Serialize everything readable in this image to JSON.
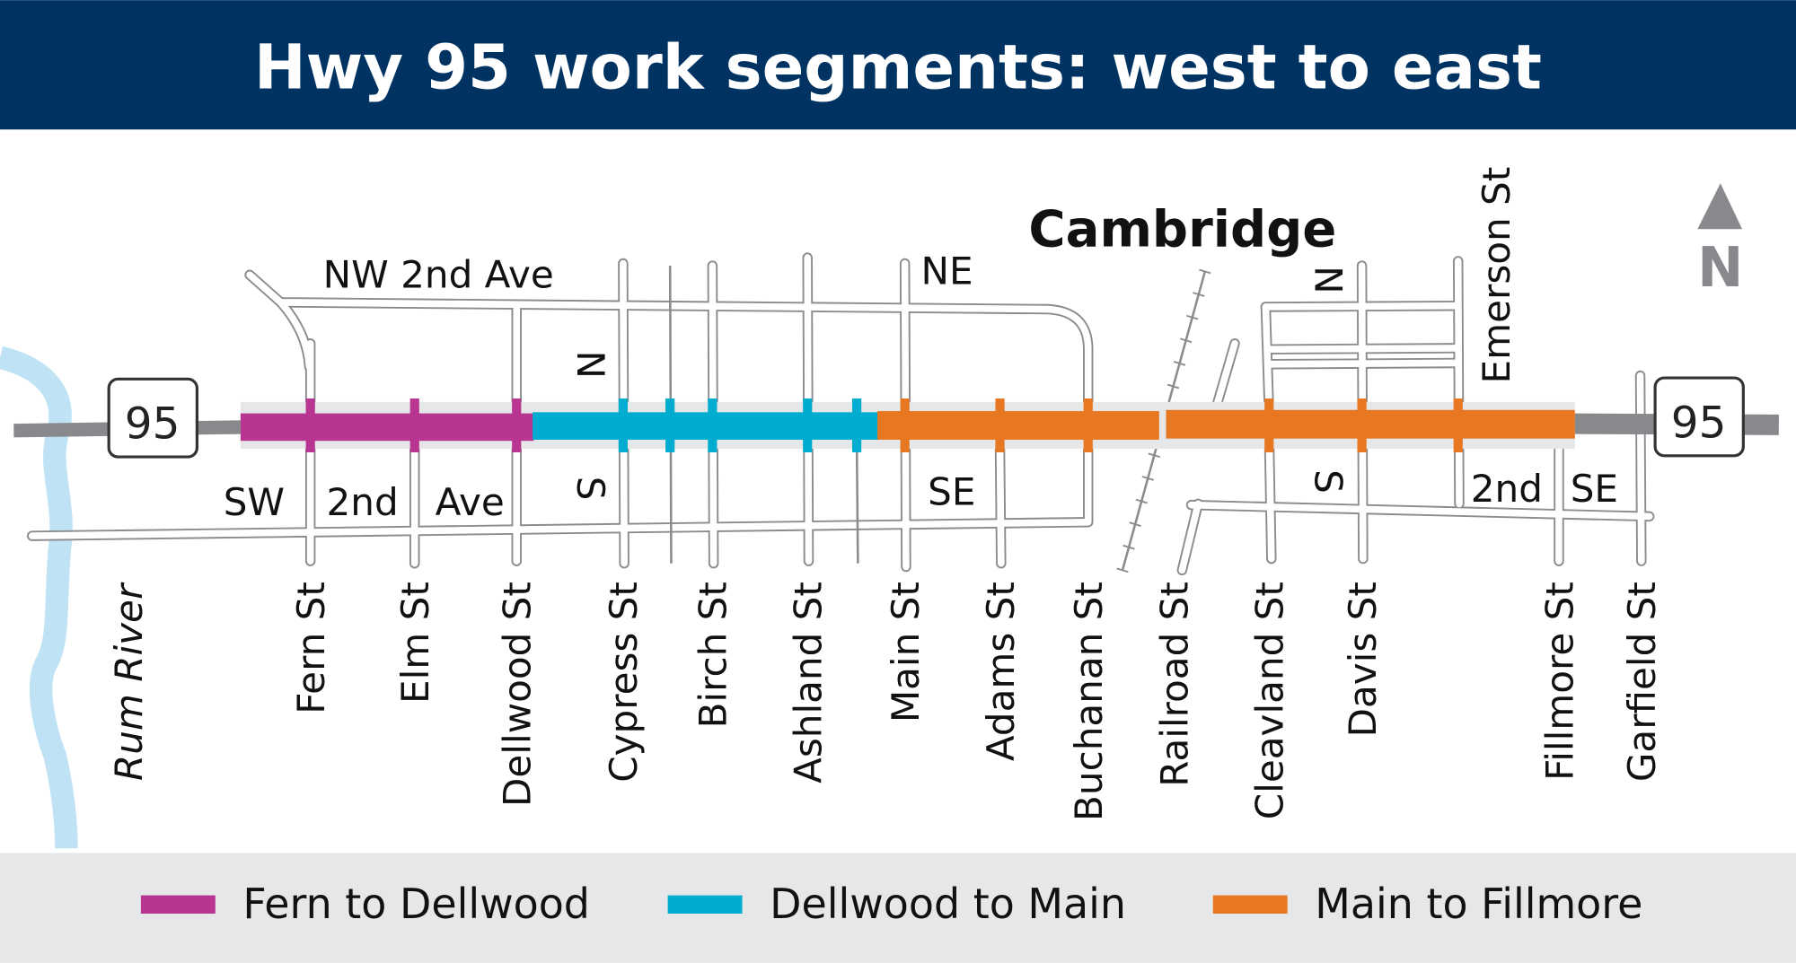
{
  "header": {
    "title": "Hwy 95 work segments: west to east",
    "bg_color": "#003362"
  },
  "highway": {
    "route_number": "95",
    "color": "#87898c"
  },
  "city_label": "Cambridge",
  "river_label": "Rum River",
  "north_arrow": {
    "label": "N"
  },
  "road_labels": {
    "nw_2nd_ave": "NW 2nd Ave",
    "sw": "SW",
    "sw_2nd": "2nd",
    "sw_ave": "Ave",
    "n_west": "N",
    "s_west": "S",
    "ne": "NE",
    "se_west": "SE",
    "n_east": "N",
    "s_east": "S",
    "emerson": "Emerson St",
    "se_2nd": "2nd",
    "se_east": "SE"
  },
  "streets": [
    {
      "name": "Fern St",
      "color": "#b83592"
    },
    {
      "name": "Elm St",
      "color": "#b83592"
    },
    {
      "name": "Dellwood St",
      "color": "#b83592"
    },
    {
      "name": "Cypress St",
      "color": "#00acd0"
    },
    {
      "name": "Birch St",
      "color": "#00acd0"
    },
    {
      "name": "Ashland St",
      "color": "#00acd0"
    },
    {
      "name": "Main St",
      "color": "#e87722"
    },
    {
      "name": "Adams St",
      "color": "#e87722"
    },
    {
      "name": "Buchanan St",
      "color": "#e87722"
    },
    {
      "name": "Railroad St",
      "color": "#e87722"
    },
    {
      "name": "Cleavland St",
      "color": "#e87722"
    },
    {
      "name": "Davis St",
      "color": "#e87722"
    },
    {
      "name": "Fillmore St",
      "color": "#e87722"
    },
    {
      "name": "Garfield St",
      "color": "#e87722"
    }
  ],
  "legend": [
    {
      "label": "Fern to Dellwood",
      "color": "#b83592"
    },
    {
      "label": "Dellwood to Main",
      "color": "#00acd0"
    },
    {
      "label": "Main to Fillmore",
      "color": "#e87722"
    }
  ]
}
